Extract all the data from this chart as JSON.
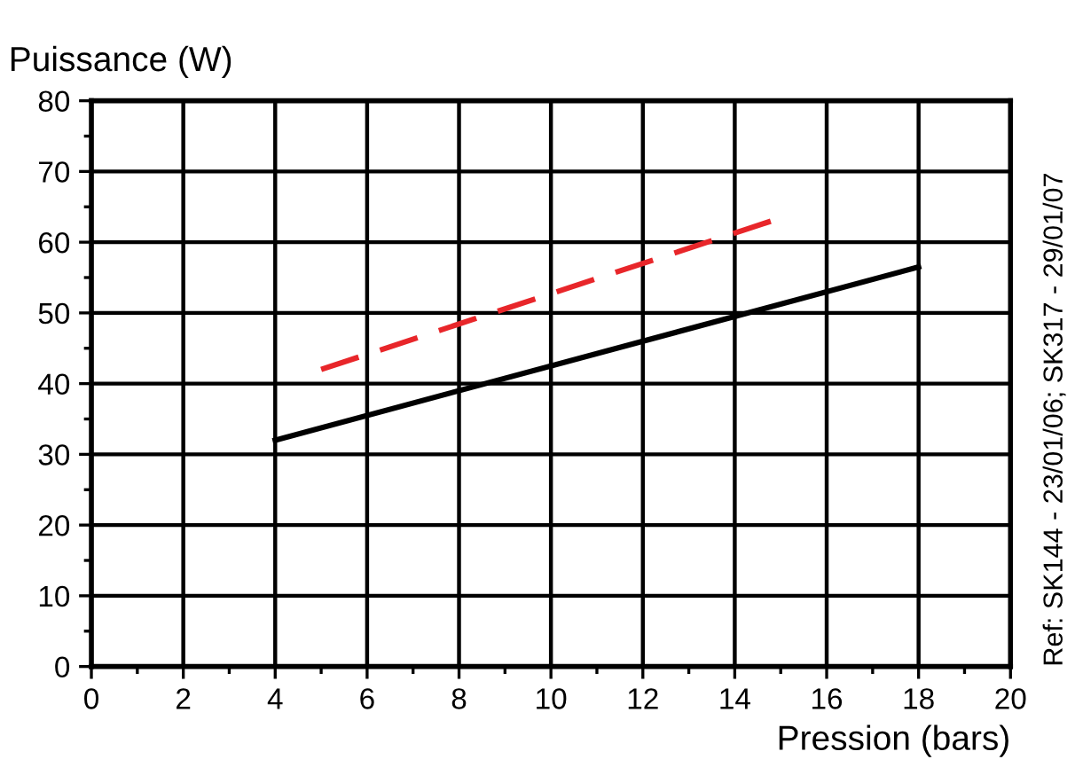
{
  "chart_data": {
    "type": "line",
    "xlabel": "Pression (bars)",
    "ylabel": "Puissance (W)",
    "series": [
      {
        "color": "#e8262a",
        "line_style": "dashed",
        "x": [
          5,
          14.8
        ],
        "values": [
          42,
          63
        ]
      },
      {
        "color": "#000000",
        "line_style": "solid",
        "x": [
          4,
          18
        ],
        "values": [
          32,
          56.5
        ]
      }
    ],
    "xlim": [
      0,
      20
    ],
    "ylim": [
      0,
      80
    ],
    "xticks": [
      0,
      {
        "value": 1,
        "label": null
      },
      2,
      {
        "value": 3,
        "label": null
      },
      4,
      {
        "value": 5,
        "label": null
      },
      6,
      {
        "value": 7,
        "label": null
      },
      8,
      {
        "value": 9,
        "label": null
      },
      10,
      {
        "value": 11,
        "label": null
      },
      12,
      {
        "value": 13,
        "label": null
      },
      14,
      {
        "value": 15,
        "label": null
      },
      16,
      {
        "value": 17,
        "label": null
      },
      18,
      {
        "value": 19,
        "label": null
      },
      20
    ],
    "yticks": [
      0,
      {
        "value": 5,
        "label": null
      },
      10,
      {
        "value": 15,
        "label": null
      },
      20,
      {
        "value": 25,
        "label": null
      },
      30,
      {
        "value": 35,
        "label": null
      },
      40,
      {
        "value": 45,
        "label": null
      },
      50,
      {
        "value": 55,
        "label": null
      },
      60,
      {
        "value": 65,
        "label": null
      },
      70,
      {
        "value": 75,
        "label": null
      },
      80
    ],
    "grid": true,
    "marker": "none",
    "legend": false,
    "annotations": [
      "Ref: SK144 - 23/01/06; SK317 - 29/01/07"
    ]
  }
}
